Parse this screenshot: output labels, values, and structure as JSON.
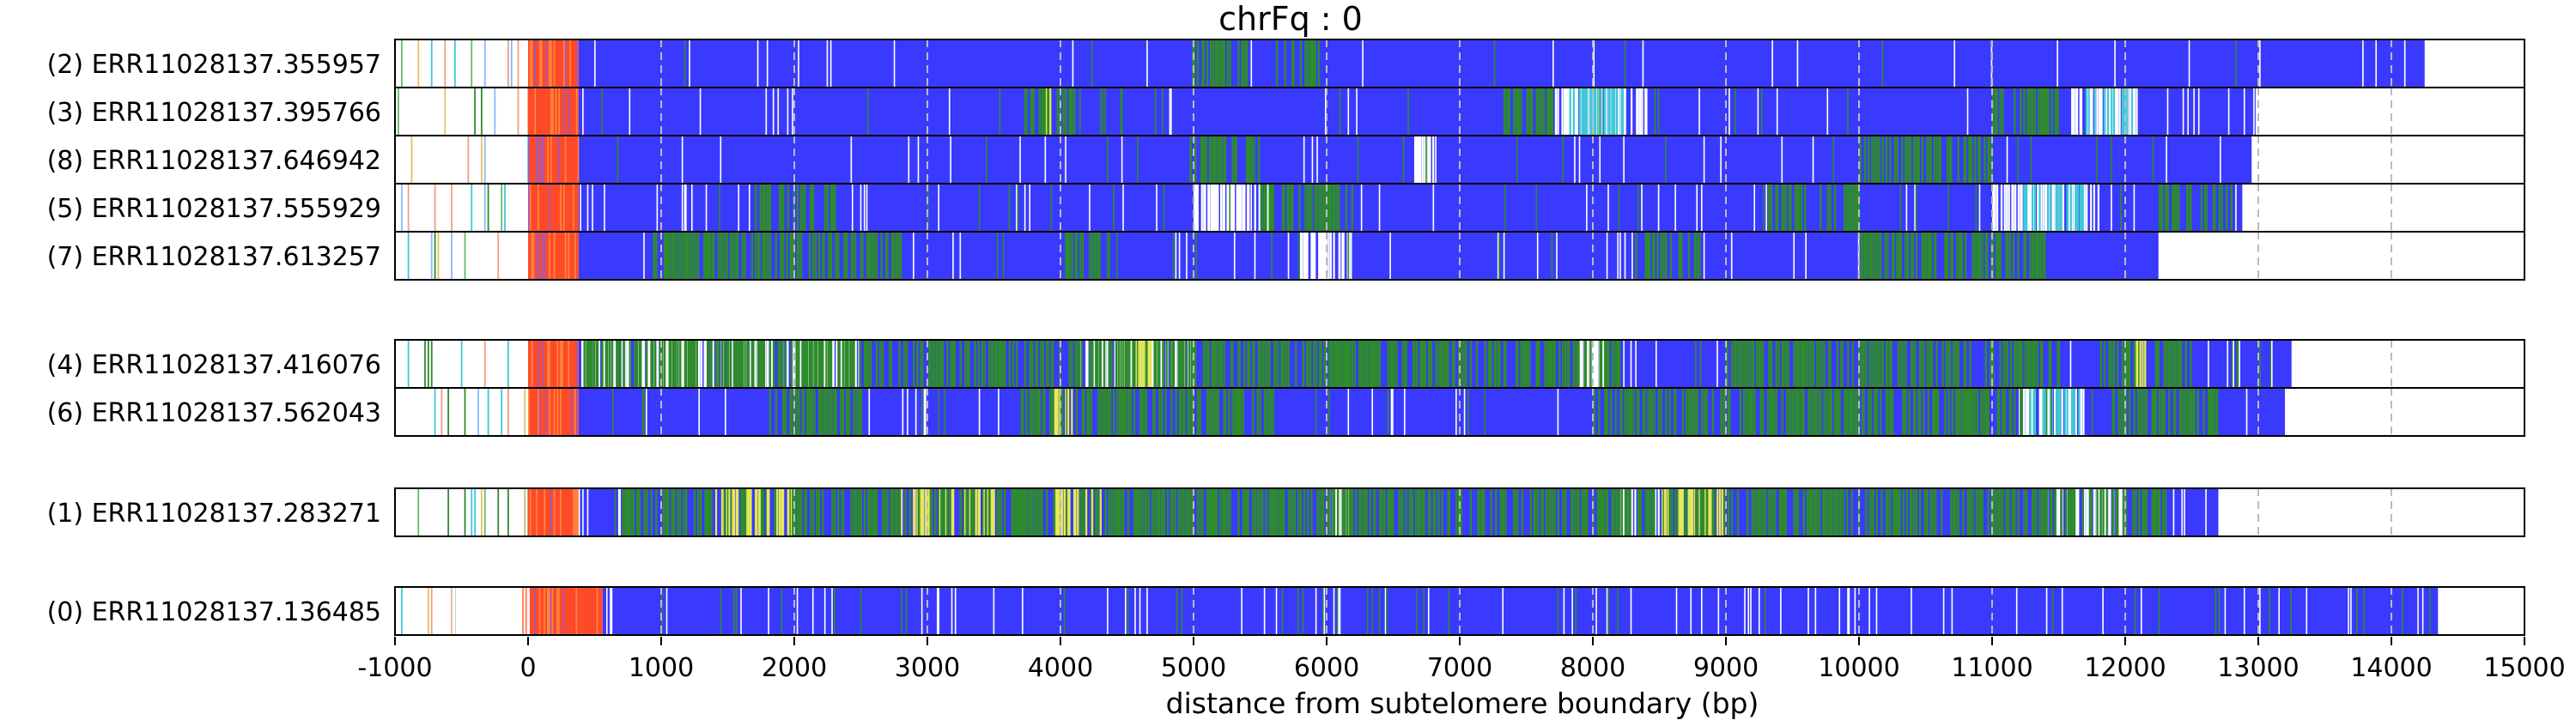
{
  "chart_data": {
    "type": "heatmap",
    "title": "chrFq : 0",
    "xlabel": "distance from subtelomere boundary (bp)",
    "ylabel": "",
    "xlim": [
      -1000,
      15000
    ],
    "xticks": [
      -1000,
      0,
      1000,
      2000,
      3000,
      4000,
      5000,
      6000,
      7000,
      8000,
      9000,
      10000,
      11000,
      12000,
      13000,
      14000,
      15000
    ],
    "xtick_labels": [
      "-1000",
      "0",
      "1000",
      "2000",
      "3000",
      "4000",
      "5000",
      "6000",
      "7000",
      "8000",
      "9000",
      "10000",
      "11000",
      "12000",
      "13000",
      "14000",
      "15000"
    ],
    "vertical_gridlines": [
      1000,
      2000,
      3000,
      4000,
      5000,
      6000,
      7000,
      8000,
      9000,
      10000,
      11000,
      12000,
      13000,
      14000
    ],
    "colors": {
      "repeat": "#3a3aff",
      "boundary": "#ff4a2a",
      "variant_green": "#2e8b2e",
      "variant_yellow": "#e8e85a",
      "variant_cyan": "#40c8d8",
      "gap": "#ffffff",
      "gridline": "#bbbbbb"
    },
    "groups": [
      {
        "reads": [
          {
            "label": "(2) ERR11028137.355957",
            "read_end": 14250,
            "boundary": [
              0,
              380
            ],
            "density": 0.3,
            "greens": [
              [
                4950,
                5400
              ],
              [
                5600,
                5950
              ]
            ],
            "whites": [],
            "yellows": [],
            "cyans": []
          },
          {
            "label": "(3) ERR11028137.395766",
            "read_end": 12980,
            "boundary": [
              0,
              380
            ],
            "density": 1.0,
            "greens": [
              [
                3700,
                4100
              ],
              [
                7300,
                7700
              ],
              [
                11000,
                11500
              ]
            ],
            "whites": [
              [
                7700,
                8400
              ],
              [
                11600,
                12100
              ]
            ],
            "yellows": [
              [
                3850,
                3950
              ]
            ],
            "cyans": [
              [
                7800,
                8300
              ],
              [
                11700,
                12050
              ]
            ]
          },
          {
            "label": "(8) ERR11028137.646942",
            "read_end": 12950,
            "boundary": [
              0,
              380
            ],
            "density": 0.6,
            "greens": [
              [
                4950,
                5500
              ],
              [
                10000,
                11000
              ]
            ],
            "whites": [
              [
                6650,
                6800
              ]
            ],
            "yellows": [],
            "cyans": []
          },
          {
            "label": "(5) ERR11028137.555929",
            "read_end": 12880,
            "boundary": [
              0,
              380
            ],
            "density": 1.0,
            "greens": [
              [
                1700,
                2300
              ],
              [
                5500,
                6200
              ],
              [
                9300,
                10000
              ],
              [
                12200,
                12800
              ]
            ],
            "whites": [
              [
                5000,
                5600
              ],
              [
                11000,
                11800
              ]
            ],
            "yellows": [],
            "cyans": [
              [
                11200,
                11700
              ]
            ]
          },
          {
            "label": "(7) ERR11028137.613257",
            "read_end": 12250,
            "boundary": [
              0,
              380
            ],
            "density": 0.8,
            "greens": [
              [
                900,
                2800
              ],
              [
                4000,
                4400
              ],
              [
                8300,
                8800
              ],
              [
                10000,
                11400
              ]
            ],
            "whites": [
              [
                5800,
                6200
              ]
            ],
            "yellows": [],
            "cyans": []
          }
        ]
      },
      {
        "reads": [
          {
            "label": "(4) ERR11028137.416076",
            "read_end": 13250,
            "boundary": [
              0,
              380
            ],
            "density": 1.6,
            "greens": [
              [
                400,
                8200
              ],
              [
                9000,
                11500
              ],
              [
                11800,
                12500
              ]
            ],
            "whites": [
              [
                400,
                2500
              ],
              [
                4100,
                5000
              ],
              [
                7900,
                8100
              ]
            ],
            "yellows": [
              [
                4500,
                4700
              ],
              [
                12000,
                12200
              ]
            ],
            "cyans": []
          },
          {
            "label": "(6) ERR11028137.562043",
            "read_end": 13200,
            "boundary": [
              0,
              380
            ],
            "density": 1.3,
            "greens": [
              [
                1800,
                2500
              ],
              [
                3700,
                5600
              ],
              [
                8000,
                11400
              ],
              [
                11900,
                12700
              ]
            ],
            "whites": [
              [
                11200,
                11700
              ]
            ],
            "yellows": [
              [
                3900,
                4100
              ]
            ],
            "cyans": [
              [
                11250,
                11650
              ]
            ]
          }
        ]
      },
      {
        "reads": [
          {
            "label": "(1) ERR11028137.283271",
            "read_end": 12700,
            "boundary": [
              0,
              380
            ],
            "density": 1.4,
            "greens": [
              [
                700,
                12300
              ]
            ],
            "whites": [
              [
                6000,
                6200
              ],
              [
                8200,
                8500
              ],
              [
                11400,
                12000
              ]
            ],
            "yellows": [
              [
                1400,
                2000
              ],
              [
                2800,
                3500
              ],
              [
                3900,
                4300
              ],
              [
                8500,
                9000
              ]
            ],
            "cyans": []
          }
        ]
      },
      {
        "reads": [
          {
            "label": "(0) ERR11028137.136485",
            "read_end": 14350,
            "boundary": [
              -50,
              560
            ],
            "density": 1.2,
            "greens": [
              [
                -1000,
                -650
              ]
            ],
            "whites": [
              [
                -650,
                0
              ]
            ],
            "yellows": [],
            "cyans": []
          }
        ]
      }
    ]
  }
}
